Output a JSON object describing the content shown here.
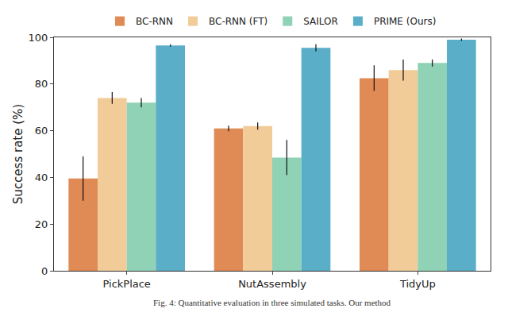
{
  "chart_data": {
    "type": "bar",
    "y_label": "Success rate (%)",
    "categories": [
      "PickPlace",
      "NutAssembly",
      "TidyUp"
    ],
    "series": [
      {
        "name": "BC-RNN",
        "color": "#e08a55",
        "values": [
          39.5,
          61,
          82.5
        ],
        "errors": [
          9.5,
          1.2,
          5.5
        ]
      },
      {
        "name": "BC-RNN (FT)",
        "color": "#f2cc98",
        "values": [
          74,
          62,
          86
        ],
        "errors": [
          2.5,
          1.5,
          4.5
        ]
      },
      {
        "name": "SAILOR",
        "color": "#8fd2b5",
        "values": [
          72,
          48.5,
          89
        ],
        "errors": [
          2,
          7.5,
          1.5
        ]
      },
      {
        "name": "PRIME (Ours)",
        "color": "#5aaec8",
        "values": [
          96.5,
          95.5,
          99
        ],
        "errors": [
          0.5,
          1.5,
          0.5
        ]
      }
    ],
    "ylim": [
      0,
      100
    ],
    "yticks": [
      0,
      20,
      40,
      60,
      80,
      100
    ],
    "grid": false,
    "legend": "top",
    "annotations": [
      "Fig. 4: Quantitative evaluation in three simulated tasks. Our method"
    ]
  }
}
